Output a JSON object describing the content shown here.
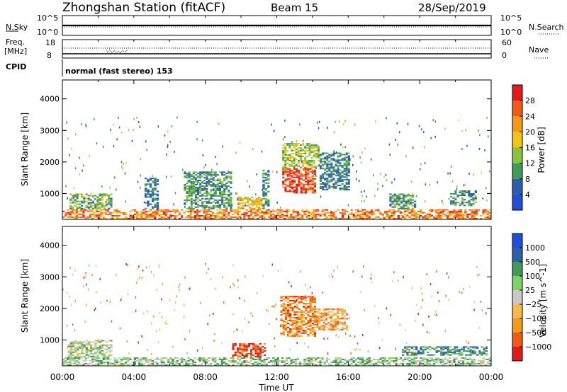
{
  "header": {
    "station": "Zhongshan Station (fitACF)",
    "beam": "Beam 15",
    "date": "28/Sep/2019"
  },
  "top_panels": {
    "nsky": {
      "left_label": "N.Sky",
      "left_ticks": [
        "10^5",
        "10^0"
      ],
      "right_ticks": [
        "10^5",
        "10^0"
      ],
      "right_label": "N.Search",
      "right_legend_style": "dotted"
    },
    "freq": {
      "left_label_line1": "Freq.",
      "left_label_line2": "[MHz]",
      "left_ticks": [
        "18",
        "8"
      ],
      "right_ticks": [
        "60",
        "0"
      ],
      "right_label": "Nave",
      "right_legend_style": "dotted"
    },
    "cpid": {
      "label": "CPID",
      "text": "normal (fast stereo) 153"
    }
  },
  "x_axis": {
    "label": "Time UT",
    "ticks": [
      "00:00",
      "04:00",
      "08:00",
      "12:00",
      "16:00",
      "20:00",
      "00:00"
    ]
  },
  "chart_data": [
    {
      "type": "heatmap",
      "name": "power",
      "ylabel": "Slant Range [km]",
      "y_ticks": [
        1000,
        2000,
        3000,
        4000
      ],
      "ylim": [
        180,
        4600
      ],
      "xlim_hours": [
        0,
        24
      ],
      "colorbar": {
        "label": "Power [dB]",
        "ticks": [
          "28",
          "24",
          "20",
          "16",
          "12",
          "8",
          "4"
        ],
        "range": [
          0,
          30
        ]
      },
      "regions": [
        {
          "t0": 0.0,
          "t1": 24.0,
          "r0": 180,
          "r1": 500,
          "level": 0.75
        },
        {
          "t0": 0.4,
          "t1": 2.8,
          "r0": 500,
          "r1": 1000,
          "level": 0.35
        },
        {
          "t0": 4.6,
          "t1": 5.4,
          "r0": 500,
          "r1": 1500,
          "level": 0.2
        },
        {
          "t0": 6.8,
          "t1": 9.5,
          "r0": 500,
          "r1": 1700,
          "level": 0.3
        },
        {
          "t0": 9.8,
          "t1": 11.2,
          "r0": 500,
          "r1": 900,
          "level": 0.6
        },
        {
          "t0": 11.2,
          "t1": 11.6,
          "r0": 500,
          "r1": 1800,
          "level": 0.3
        },
        {
          "t0": 12.3,
          "t1": 14.2,
          "r0": 1000,
          "r1": 1800,
          "level": 0.88
        },
        {
          "t0": 12.3,
          "t1": 14.4,
          "r0": 1800,
          "r1": 2600,
          "level": 0.45
        },
        {
          "t0": 14.4,
          "t1": 16.1,
          "r0": 1100,
          "r1": 2300,
          "level": 0.25
        },
        {
          "t0": 18.3,
          "t1": 19.8,
          "r0": 500,
          "r1": 1000,
          "level": 0.3
        },
        {
          "t0": 21.7,
          "t1": 23.2,
          "r0": 600,
          "r1": 1100,
          "level": 0.3
        }
      ]
    },
    {
      "type": "heatmap",
      "name": "velocity",
      "ylabel": "Slant Range [km]",
      "y_ticks": [
        1000,
        2000,
        3000,
        4000
      ],
      "ylim": [
        180,
        4600
      ],
      "xlim_hours": [
        0,
        24
      ],
      "colorbar": {
        "label": "Velocity [m s^-1]",
        "ticks": [
          "1000",
          "500",
          "100",
          "25",
          "−25",
          "−100",
          "−500",
          "−1000"
        ],
        "range": [
          -1000,
          1000
        ]
      },
      "regions": [
        {
          "t0": 0.0,
          "t1": 24.0,
          "r0": 180,
          "r1": 450,
          "level": 0.6
        },
        {
          "t0": 0.3,
          "t1": 2.8,
          "r0": 450,
          "r1": 1000,
          "level": 0.55
        },
        {
          "t0": 9.5,
          "t1": 11.4,
          "r0": 450,
          "r1": 900,
          "level": 0.1
        },
        {
          "t0": 12.2,
          "t1": 14.2,
          "r0": 1100,
          "r1": 2400,
          "level": 0.25
        },
        {
          "t0": 14.2,
          "t1": 16.0,
          "r0": 1300,
          "r1": 2000,
          "level": 0.3
        },
        {
          "t0": 19.0,
          "t1": 23.8,
          "r0": 500,
          "r1": 800,
          "level": 0.75
        }
      ]
    }
  ]
}
